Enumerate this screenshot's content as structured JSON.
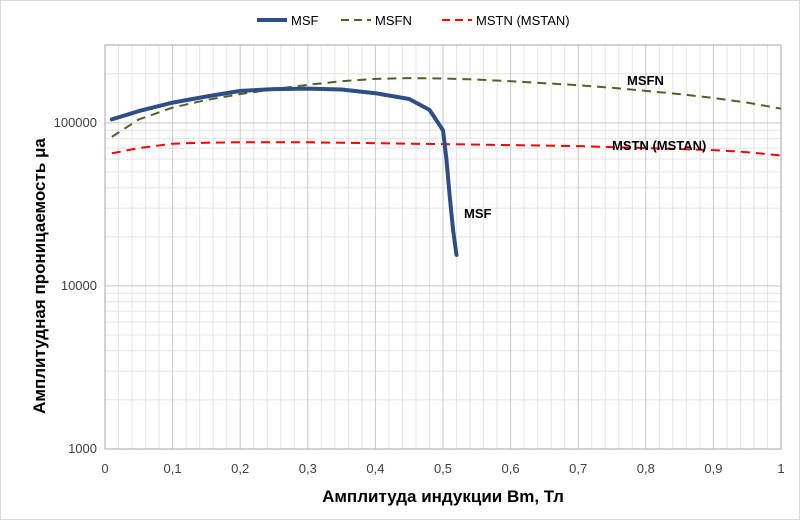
{
  "chart_data": {
    "type": "line",
    "title": "",
    "xlabel": "Амплитуда индукции Bm, Тл",
    "ylabel": "Амплитудная проницаемость μа",
    "xlim": [
      0,
      1
    ],
    "ylim": [
      1000,
      300000
    ],
    "y_scale": "log",
    "x_ticks": [
      "0",
      "0,1",
      "0,2",
      "0,3",
      "0,4",
      "0,5",
      "0,6",
      "0,7",
      "0,8",
      "0,9",
      "1"
    ],
    "y_ticks": [
      "1000",
      "10000",
      "100000"
    ],
    "grid": true,
    "legend_position": "top",
    "series": [
      {
        "name": "MSF",
        "color": "#2e4f86",
        "style": "solid",
        "label": "MSF",
        "x": [
          0.01,
          0.05,
          0.1,
          0.15,
          0.2,
          0.25,
          0.3,
          0.35,
          0.4,
          0.45,
          0.48,
          0.5,
          0.505,
          0.51,
          0.515,
          0.52
        ],
        "y": [
          105000,
          118000,
          133000,
          145000,
          157000,
          161000,
          162000,
          160000,
          152000,
          140000,
          120000,
          90000,
          60000,
          35000,
          22000,
          15500
        ]
      },
      {
        "name": "MSFN",
        "color": "#4f6228",
        "style": "dashed",
        "label": "MSFN",
        "x": [
          0.01,
          0.05,
          0.1,
          0.15,
          0.2,
          0.25,
          0.3,
          0.35,
          0.4,
          0.45,
          0.5,
          0.55,
          0.6,
          0.65,
          0.7,
          0.75,
          0.8,
          0.85,
          0.9,
          0.95,
          1.0
        ],
        "y": [
          82000,
          105000,
          124000,
          138000,
          150000,
          161000,
          171000,
          180000,
          186000,
          188000,
          187000,
          184000,
          180000,
          175000,
          170000,
          164000,
          157000,
          150000,
          142000,
          133000,
          122000
        ]
      },
      {
        "name": "MSTN (MSTAN)",
        "color": "#ff0000",
        "style": "dashed",
        "label": "MSTN (MSTAN)",
        "x": [
          0.01,
          0.05,
          0.1,
          0.15,
          0.2,
          0.25,
          0.3,
          0.35,
          0.4,
          0.45,
          0.5,
          0.55,
          0.6,
          0.65,
          0.7,
          0.75,
          0.8,
          0.85,
          0.9,
          0.95,
          1.0
        ],
        "y": [
          65000,
          70000,
          74500,
          75500,
          76000,
          76000,
          76000,
          75500,
          75000,
          74500,
          74000,
          73500,
          73000,
          72500,
          72000,
          71000,
          70000,
          69000,
          68000,
          66000,
          63000
        ]
      }
    ]
  }
}
